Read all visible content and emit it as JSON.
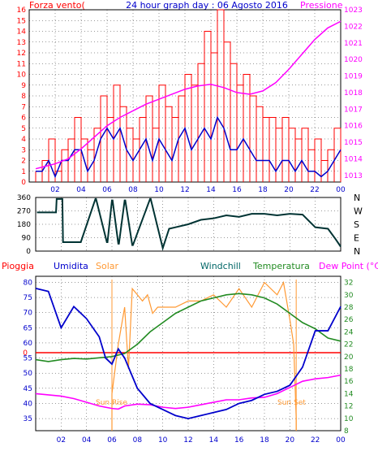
{
  "colors": {
    "wind": "#ff0000",
    "gust_base": "#0000cc",
    "pressure": "#ff00ff",
    "direction": "#003333",
    "humidity": "#0000cc",
    "solar": "#ff9933",
    "temperature": "#228b22",
    "windchill": "#006666",
    "dewpoint": "#ff00ff",
    "rain": "#ff0000",
    "axis_blue": "#0000cc",
    "axis_green": "#228b22",
    "axis_red": "#ff0000",
    "axis_pink": "#ff00ff",
    "grid": "#000000"
  },
  "header": {
    "left": "Forza vento(",
    "center": "24 hour graph day : 06 Agosto 2016",
    "right": "Pressione"
  },
  "legend": {
    "rain": "Pioggia",
    "humidity": "Umidita",
    "solar": "Solar",
    "windchill": "Windchill",
    "temperature": "Temperatura",
    "dewpoint": "Dew Point (°C)"
  },
  "annotations": {
    "sunrise": "Sun Rise",
    "sunset": "Sun Set"
  },
  "chart_data": [
    {
      "type": "line",
      "name": "wind-pressure",
      "x_ticks": [
        "02",
        "04",
        "06",
        "08",
        "10",
        "12",
        "14",
        "16",
        "18",
        "20",
        "22",
        "00"
      ],
      "ylim_left": [
        0,
        16
      ],
      "y_ticks_left": [
        "0",
        "1",
        "2",
        "3",
        "4",
        "5",
        "6",
        "7",
        "8",
        "9",
        "10",
        "11",
        "12",
        "13",
        "14",
        "15",
        "16"
      ],
      "ylim_right": [
        1012.6,
        1023
      ],
      "y_ticks_right": [
        "1013",
        "1014",
        "1015",
        "1016",
        "1017",
        "1018",
        "1019",
        "1020",
        "1021",
        "1022",
        "1023"
      ],
      "pressure": {
        "x": [
          0.5,
          1,
          2,
          3,
          4,
          5,
          6,
          7,
          8,
          9,
          10,
          11,
          12,
          13,
          14,
          15,
          16,
          17,
          18,
          19,
          20,
          21,
          22,
          23,
          24
        ],
        "values": [
          1013.4,
          1013.5,
          1013.7,
          1014.0,
          1014.6,
          1015.3,
          1016.0,
          1016.5,
          1016.9,
          1017.3,
          1017.6,
          1017.9,
          1018.2,
          1018.4,
          1018.5,
          1018.3,
          1018.0,
          1017.9,
          1018.1,
          1018.6,
          1019.4,
          1020.3,
          1021.2,
          1021.9,
          1022.3
        ]
      },
      "wind": {
        "x": [
          0.5,
          1,
          1.5,
          2,
          2.5,
          3,
          3.5,
          4,
          4.5,
          5,
          5.5,
          6,
          6.5,
          7,
          7.5,
          8,
          8.5,
          9,
          9.5,
          10,
          10.5,
          11,
          11.5,
          12,
          12.5,
          13,
          13.5,
          14,
          14.5,
          15,
          15.5,
          16,
          16.5,
          17,
          17.5,
          18,
          18.5,
          19,
          19.5,
          20,
          20.5,
          21,
          21.5,
          22,
          22.5,
          23,
          23.5,
          24
        ],
        "values": [
          1,
          2,
          4,
          1,
          3,
          4,
          6,
          4,
          3,
          5,
          8,
          6,
          9,
          7,
          5,
          4,
          6,
          8,
          5,
          9,
          7,
          6,
          8,
          10,
          9,
          11,
          14,
          12,
          16,
          13,
          11,
          9,
          10,
          8,
          7,
          6,
          6,
          5,
          6,
          5,
          4,
          5,
          3,
          4,
          2,
          3,
          5,
          5
        ]
      },
      "gust": {
        "x": [
          0.5,
          1,
          1.5,
          2,
          2.5,
          3,
          3.5,
          4,
          4.5,
          5,
          5.5,
          6,
          6.5,
          7,
          7.5,
          8,
          8.5,
          9,
          9.5,
          10,
          10.5,
          11,
          11.5,
          12,
          12.5,
          13,
          13.5,
          14,
          14.5,
          15,
          15.5,
          16,
          16.5,
          17,
          17.5,
          18,
          18.5,
          19,
          19.5,
          20,
          20.5,
          21,
          21.5,
          22,
          22.5,
          23,
          23.5,
          24
        ],
        "values": [
          1,
          1,
          2,
          0.5,
          2,
          2,
          3,
          3,
          1,
          2,
          4,
          5,
          4,
          5,
          3,
          2,
          3,
          4,
          2,
          4,
          3,
          2,
          4,
          5,
          3,
          4,
          5,
          4,
          6,
          5,
          3,
          3,
          4,
          3,
          2,
          2,
          2,
          1,
          2,
          2,
          1,
          2,
          1,
          1,
          0.5,
          1,
          2,
          3
        ]
      }
    },
    {
      "type": "line",
      "name": "wind-direction",
      "x_ticks": [
        "02",
        "04",
        "06",
        "08",
        "10",
        "12",
        "14",
        "16",
        "18",
        "20",
        "22",
        "00"
      ],
      "ylim": [
        0,
        360
      ],
      "y_ticks": [
        "0",
        "90",
        "180",
        "270",
        "360"
      ],
      "y_ticks_right": [
        "N",
        "E",
        "S",
        "W",
        "N"
      ],
      "x": [
        0.1,
        1.6,
        1.65,
        2.1,
        2.15,
        3.5,
        3.55,
        4.7,
        4.75,
        5.6,
        5.65,
        6.0,
        6.05,
        6.5,
        6.55,
        7.0,
        7.05,
        7.6,
        7.65,
        9.0,
        9.05,
        10.0,
        10.5,
        11.0,
        12.0,
        13.0,
        14.0,
        15.0,
        16.0,
        17.0,
        18.0,
        19.0,
        20.0,
        21.0,
        22.0,
        23.0,
        23.6,
        24.0
      ],
      "values": [
        260,
        260,
        350,
        350,
        60,
        60,
        60,
        350,
        350,
        60,
        60,
        340,
        340,
        50,
        50,
        340,
        340,
        40,
        40,
        350,
        350,
        20,
        150,
        160,
        180,
        210,
        220,
        240,
        230,
        250,
        250,
        240,
        250,
        245,
        160,
        150,
        80,
        30
      ]
    },
    {
      "type": "line",
      "name": "temperature-humidity",
      "x_ticks": [
        "02",
        "04",
        "06",
        "08",
        "10",
        "12",
        "14",
        "16",
        "18",
        "20",
        "22",
        "00"
      ],
      "ylim_left": [
        31,
        82
      ],
      "y_ticks_left": [
        "35",
        "40",
        "45",
        "50",
        "55",
        "60",
        "65",
        "70",
        "75",
        "80"
      ],
      "ylim_right": [
        8,
        33
      ],
      "y_ticks_right": [
        "8",
        "10",
        "12",
        "14",
        "16",
        "18",
        "20",
        "22",
        "24",
        "26",
        "28",
        "30",
        "32"
      ],
      "rain_label": "0",
      "humidity": {
        "x": [
          0,
          1,
          2,
          3,
          4,
          5,
          5.5,
          6,
          6.5,
          7,
          7.5,
          8,
          9,
          10,
          11,
          12,
          13,
          14,
          15,
          16,
          17,
          18,
          19,
          20,
          21,
          22,
          23,
          24
        ],
        "values": [
          78,
          77,
          65,
          72,
          68,
          62,
          55,
          53,
          58,
          55,
          50,
          45,
          40,
          38,
          36,
          35,
          36,
          37,
          38,
          40,
          41,
          43,
          44,
          46,
          52,
          64,
          64,
          72
        ]
      },
      "temperature": {
        "x": [
          0,
          1,
          2,
          3,
          4,
          5,
          6,
          7,
          8,
          9,
          10,
          11,
          12,
          13,
          14,
          15,
          16,
          17,
          18,
          19,
          20,
          21,
          22,
          23,
          24
        ],
        "values": [
          19.5,
          19.2,
          19.5,
          19.7,
          19.6,
          19.8,
          20.0,
          20.5,
          22.0,
          24.0,
          25.5,
          27.0,
          28.0,
          29.0,
          29.5,
          30.0,
          30.2,
          30.0,
          29.5,
          28.5,
          27.0,
          25.5,
          24.5,
          23.0,
          22.5
        ]
      },
      "dewpoint": {
        "x": [
          0,
          1,
          2,
          3,
          4,
          5,
          6,
          6.5,
          7,
          8,
          9,
          10,
          11,
          12,
          13,
          14,
          15,
          16,
          17,
          18,
          19,
          20,
          21,
          22,
          23,
          24
        ],
        "values": [
          14.0,
          13.8,
          13.6,
          13.2,
          12.6,
          12.0,
          11.6,
          11.5,
          12.0,
          12.3,
          12.2,
          11.8,
          11.6,
          11.8,
          12.2,
          12.6,
          13.0,
          13.0,
          13.3,
          13.4,
          14.0,
          15.0,
          16.0,
          16.4,
          16.6,
          17.0
        ]
      },
      "solar": {
        "x": [
          6.0,
          6.5,
          7.0,
          7.3,
          7.6,
          8.0,
          8.4,
          8.8,
          9.2,
          9.6,
          10.0,
          11.0,
          12.0,
          13.0,
          14.0,
          15.0,
          16.0,
          17.0,
          18.0,
          19.0,
          19.5,
          20.0,
          20.3,
          20.5
        ],
        "values": [
          14,
          22,
          28,
          18,
          31,
          30,
          29,
          30,
          27,
          28,
          28,
          28,
          29,
          29,
          30,
          28,
          31,
          28,
          32,
          30,
          32,
          26,
          22,
          10
        ]
      }
    }
  ]
}
